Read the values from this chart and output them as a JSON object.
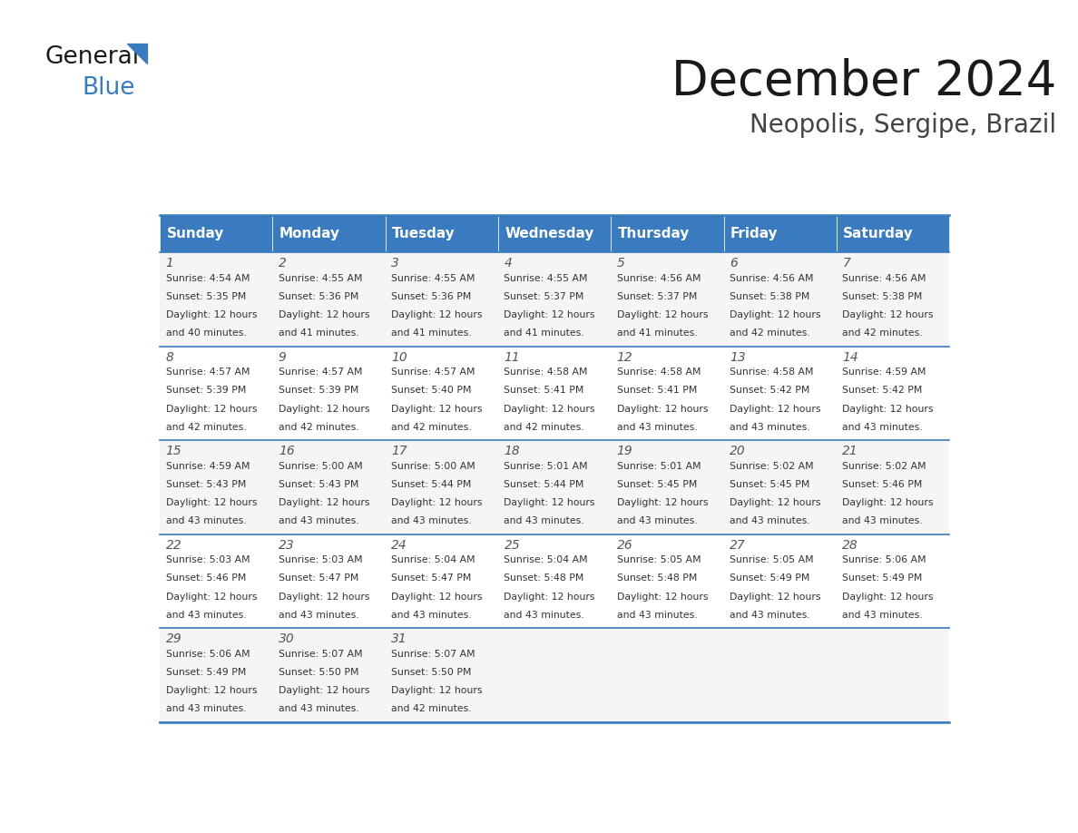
{
  "title": "December 2024",
  "subtitle": "Neopolis, Sergipe, Brazil",
  "header_bg_color": "#3a7bbf",
  "header_text_color": "#ffffff",
  "border_color": "#3a7bbf",
  "days_of_week": [
    "Sunday",
    "Monday",
    "Tuesday",
    "Wednesday",
    "Thursday",
    "Friday",
    "Saturday"
  ],
  "weeks": [
    [
      {
        "day": 1,
        "sunrise": "4:54 AM",
        "sunset": "5:35 PM",
        "daylight": "12 hours and 40 minutes."
      },
      {
        "day": 2,
        "sunrise": "4:55 AM",
        "sunset": "5:36 PM",
        "daylight": "12 hours and 41 minutes."
      },
      {
        "day": 3,
        "sunrise": "4:55 AM",
        "sunset": "5:36 PM",
        "daylight": "12 hours and 41 minutes."
      },
      {
        "day": 4,
        "sunrise": "4:55 AM",
        "sunset": "5:37 PM",
        "daylight": "12 hours and 41 minutes."
      },
      {
        "day": 5,
        "sunrise": "4:56 AM",
        "sunset": "5:37 PM",
        "daylight": "12 hours and 41 minutes."
      },
      {
        "day": 6,
        "sunrise": "4:56 AM",
        "sunset": "5:38 PM",
        "daylight": "12 hours and 42 minutes."
      },
      {
        "day": 7,
        "sunrise": "4:56 AM",
        "sunset": "5:38 PM",
        "daylight": "12 hours and 42 minutes."
      }
    ],
    [
      {
        "day": 8,
        "sunrise": "4:57 AM",
        "sunset": "5:39 PM",
        "daylight": "12 hours and 42 minutes."
      },
      {
        "day": 9,
        "sunrise": "4:57 AM",
        "sunset": "5:39 PM",
        "daylight": "12 hours and 42 minutes."
      },
      {
        "day": 10,
        "sunrise": "4:57 AM",
        "sunset": "5:40 PM",
        "daylight": "12 hours and 42 minutes."
      },
      {
        "day": 11,
        "sunrise": "4:58 AM",
        "sunset": "5:41 PM",
        "daylight": "12 hours and 42 minutes."
      },
      {
        "day": 12,
        "sunrise": "4:58 AM",
        "sunset": "5:41 PM",
        "daylight": "12 hours and 43 minutes."
      },
      {
        "day": 13,
        "sunrise": "4:58 AM",
        "sunset": "5:42 PM",
        "daylight": "12 hours and 43 minutes."
      },
      {
        "day": 14,
        "sunrise": "4:59 AM",
        "sunset": "5:42 PM",
        "daylight": "12 hours and 43 minutes."
      }
    ],
    [
      {
        "day": 15,
        "sunrise": "4:59 AM",
        "sunset": "5:43 PM",
        "daylight": "12 hours and 43 minutes."
      },
      {
        "day": 16,
        "sunrise": "5:00 AM",
        "sunset": "5:43 PM",
        "daylight": "12 hours and 43 minutes."
      },
      {
        "day": 17,
        "sunrise": "5:00 AM",
        "sunset": "5:44 PM",
        "daylight": "12 hours and 43 minutes."
      },
      {
        "day": 18,
        "sunrise": "5:01 AM",
        "sunset": "5:44 PM",
        "daylight": "12 hours and 43 minutes."
      },
      {
        "day": 19,
        "sunrise": "5:01 AM",
        "sunset": "5:45 PM",
        "daylight": "12 hours and 43 minutes."
      },
      {
        "day": 20,
        "sunrise": "5:02 AM",
        "sunset": "5:45 PM",
        "daylight": "12 hours and 43 minutes."
      },
      {
        "day": 21,
        "sunrise": "5:02 AM",
        "sunset": "5:46 PM",
        "daylight": "12 hours and 43 minutes."
      }
    ],
    [
      {
        "day": 22,
        "sunrise": "5:03 AM",
        "sunset": "5:46 PM",
        "daylight": "12 hours and 43 minutes."
      },
      {
        "day": 23,
        "sunrise": "5:03 AM",
        "sunset": "5:47 PM",
        "daylight": "12 hours and 43 minutes."
      },
      {
        "day": 24,
        "sunrise": "5:04 AM",
        "sunset": "5:47 PM",
        "daylight": "12 hours and 43 minutes."
      },
      {
        "day": 25,
        "sunrise": "5:04 AM",
        "sunset": "5:48 PM",
        "daylight": "12 hours and 43 minutes."
      },
      {
        "day": 26,
        "sunrise": "5:05 AM",
        "sunset": "5:48 PM",
        "daylight": "12 hours and 43 minutes."
      },
      {
        "day": 27,
        "sunrise": "5:05 AM",
        "sunset": "5:49 PM",
        "daylight": "12 hours and 43 minutes."
      },
      {
        "day": 28,
        "sunrise": "5:06 AM",
        "sunset": "5:49 PM",
        "daylight": "12 hours and 43 minutes."
      }
    ],
    [
      {
        "day": 29,
        "sunrise": "5:06 AM",
        "sunset": "5:49 PM",
        "daylight": "12 hours and 43 minutes."
      },
      {
        "day": 30,
        "sunrise": "5:07 AM",
        "sunset": "5:50 PM",
        "daylight": "12 hours and 43 minutes."
      },
      {
        "day": 31,
        "sunrise": "5:07 AM",
        "sunset": "5:50 PM",
        "daylight": "12 hours and 42 minutes."
      },
      null,
      null,
      null,
      null
    ]
  ]
}
